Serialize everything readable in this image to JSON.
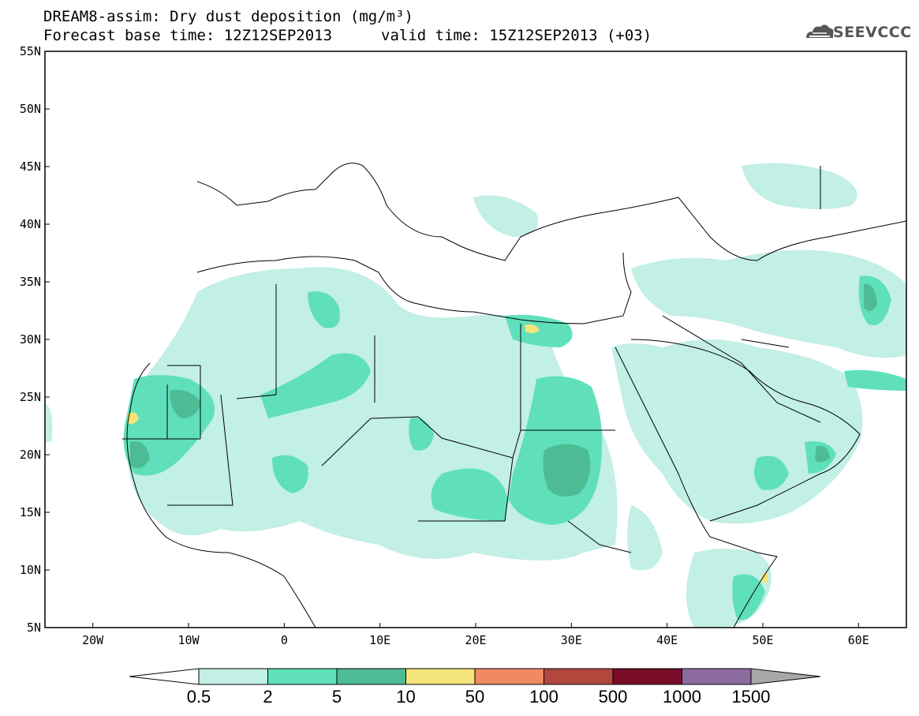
{
  "header": {
    "title": "DREAM8-assim: Dry dust deposition (mg/m³)",
    "base_time": "Forecast base time: 12Z12SEP2013",
    "valid_time": "valid time: 15Z12SEP2013 (+03)",
    "logo_text": "SEEVCCC"
  },
  "axes": {
    "lat_labels": [
      "55N",
      "50N",
      "45N",
      "40N",
      "35N",
      "30N",
      "25N",
      "20N",
      "15N",
      "10N",
      "5N"
    ],
    "lon_labels": [
      "20W",
      "10W",
      "0",
      "10E",
      "20E",
      "30E",
      "40E",
      "50E",
      "60E"
    ],
    "lon_range": [
      -25,
      65
    ],
    "lat_range": [
      5,
      55
    ]
  },
  "legend": {
    "labels": [
      "0.5",
      "2",
      "5",
      "10",
      "50",
      "100",
      "500",
      "1000",
      "1500"
    ],
    "colors": [
      "#c2efe6",
      "#5fe0bb",
      "#4dbc94",
      "#f4e47a",
      "#ef8a62",
      "#b2473d",
      "#7a0d2a",
      "#8c6b9e",
      "#a8a8a8"
    ]
  }
}
